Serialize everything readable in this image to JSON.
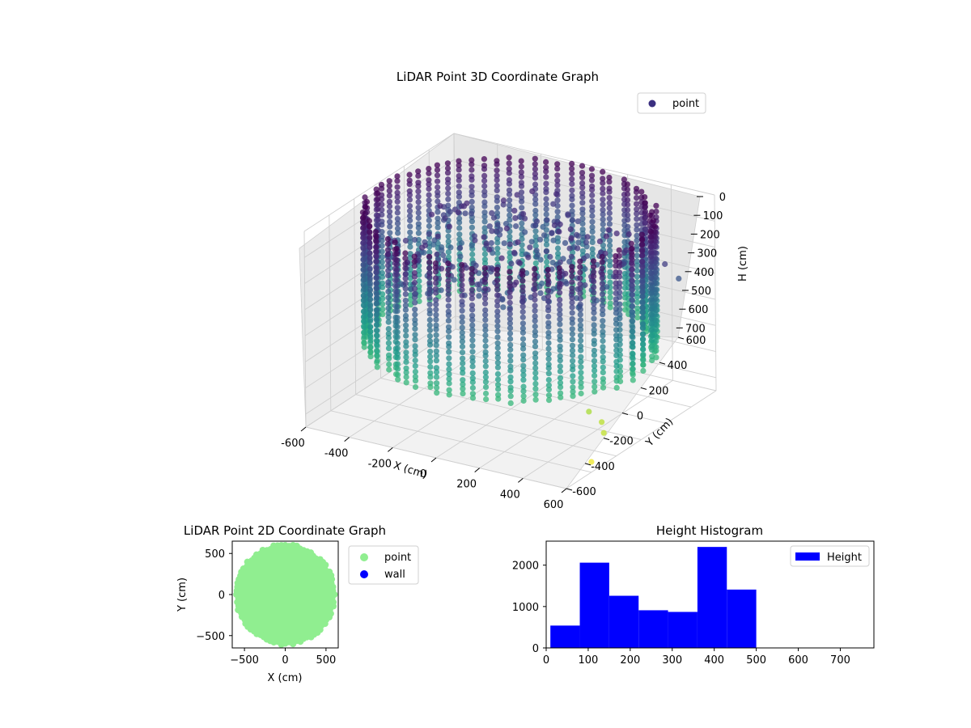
{
  "chart_data": [
    {
      "type": "scatter",
      "projection": "3d",
      "title": "LiDAR Point 3D Coordinate Graph",
      "xlabel": "X (cm)",
      "ylabel": "Y (cm)",
      "zlabel": "H (cm)",
      "xlim": [
        -600,
        600
      ],
      "ylim": [
        -600,
        600
      ],
      "zlim": [
        750,
        0
      ],
      "z_inverted": true,
      "xticks": [
        -600,
        -400,
        -200,
        0,
        200,
        400,
        600
      ],
      "yticks": [
        -600,
        -400,
        -200,
        0,
        200,
        400,
        600
      ],
      "zticks": [
        0,
        100,
        200,
        300,
        400,
        500,
        600,
        700
      ],
      "colormap": "viridis",
      "grid": true,
      "legend_position": "top-right",
      "series": [
        {
          "name": "point",
          "color": "#3b2f80",
          "description_shape": "cylindrical wall ring of radius ~600, heights 0-500, plus scattered floor points",
          "ring_radius": 600,
          "ring_height_range": [
            0,
            500
          ],
          "outliers": [
            {
              "x": 560,
              "y": -330,
              "h": 740
            },
            {
              "x": 520,
              "y": -160,
              "h": 690
            },
            {
              "x": 470,
              "y": -90,
              "h": 680
            },
            {
              "x": 400,
              "y": -70,
              "h": 660
            },
            {
              "x": 600,
              "y": 200,
              "h": 140
            },
            {
              "x": 640,
              "y": 240,
              "h": 200
            }
          ]
        }
      ]
    },
    {
      "type": "scatter",
      "title": "LiDAR Point 2D Coordinate Graph",
      "xlabel": "X (cm)",
      "ylabel": "Y (cm)",
      "xlim": [
        -650,
        650
      ],
      "ylim": [
        -650,
        650
      ],
      "xticks": [
        -500,
        0,
        500
      ],
      "yticks": [
        -500,
        0,
        500
      ],
      "legend_position": "outside-right",
      "series": [
        {
          "name": "point",
          "color": "#90ee90",
          "shape": "disc",
          "radius": 600
        },
        {
          "name": "wall",
          "color": "#0000ff"
        }
      ]
    },
    {
      "type": "bar",
      "title": "Height Histogram",
      "xlabel": "",
      "ylabel": "",
      "xlim": [
        0,
        780
      ],
      "ylim": [
        0,
        2580
      ],
      "xticks": [
        0,
        100,
        200,
        300,
        400,
        500,
        600,
        700
      ],
      "yticks": [
        0,
        1000,
        2000
      ],
      "legend_position": "top-right",
      "series": [
        {
          "name": "Height",
          "color": "#0000ff",
          "bin_edges": [
            10,
            80,
            150,
            220,
            290,
            360,
            430,
            500
          ],
          "values": [
            540,
            2060,
            1260,
            910,
            870,
            2440,
            1410
          ]
        }
      ]
    }
  ]
}
